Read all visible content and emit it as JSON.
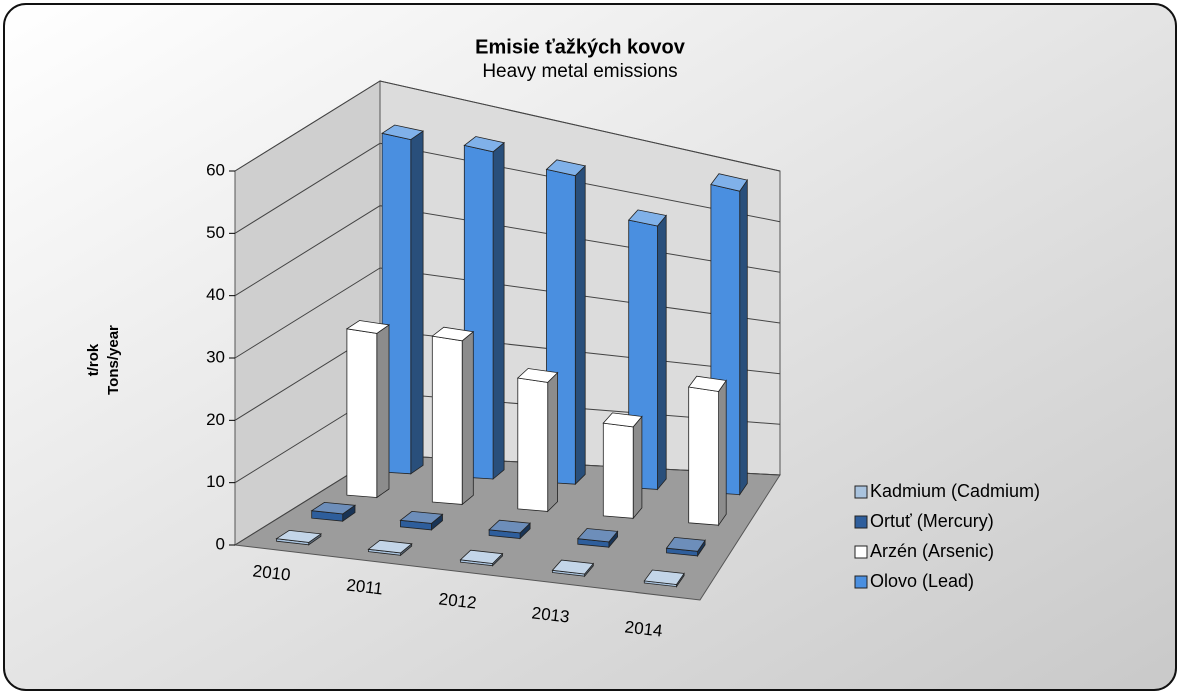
{
  "chart_data": {
    "type": "bar3d",
    "title": "Emisie ťažkých kovov",
    "subtitle": "Heavy metal emissions",
    "ylabel": [
      "t/rok",
      "Tons/year"
    ],
    "categories": [
      "2010",
      "2011",
      "2012",
      "2013",
      "2014"
    ],
    "series": [
      {
        "name": "Kadmium (Cadmium)",
        "color": "#a9c3de",
        "values": [
          0.4,
          0.4,
          0.4,
          0.4,
          0.4
        ]
      },
      {
        "name": "Ortuť (Mercury)",
        "color": "#2e5e9c",
        "values": [
          1.2,
          1.1,
          1.0,
          1.0,
          0.9
        ]
      },
      {
        "name": "Arzén (Arsenic)",
        "color": "#ffffff",
        "values": [
          27,
          28,
          23,
          17,
          26
        ]
      },
      {
        "name": "Olovo (Lead)",
        "color": "#4a8fe0",
        "values": [
          55,
          56,
          55,
          49,
          59
        ]
      }
    ],
    "ylim": [
      0,
      60
    ],
    "yticks": [
      0,
      10,
      20,
      30,
      40,
      50,
      60
    ],
    "grid": true,
    "legend": "right"
  }
}
